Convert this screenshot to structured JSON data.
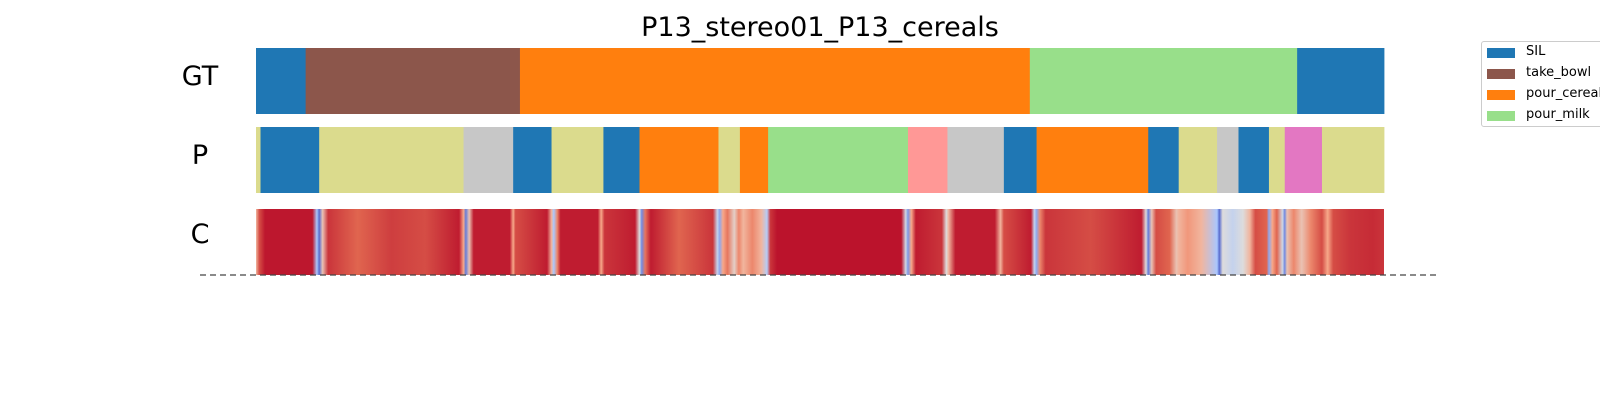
{
  "chart_data": {
    "type": "segmentation",
    "title": "P13_stereo01_P13_cereals",
    "x_range": [
      0,
      1
    ],
    "rows": [
      {
        "label": "GT",
        "kind": "segments",
        "segments": [
          {
            "end": 0.044,
            "class": "SIL"
          },
          {
            "end": 0.234,
            "class": "take_bowl"
          },
          {
            "end": 0.686,
            "class": "pour_cereals"
          },
          {
            "end": 0.923,
            "class": "pour_milk"
          },
          {
            "end": 1.0,
            "class": "SIL"
          }
        ]
      },
      {
        "label": "P",
        "kind": "segments",
        "segments": [
          {
            "end": 0.004,
            "class": "olive"
          },
          {
            "end": 0.056,
            "class": "SIL"
          },
          {
            "end": 0.184,
            "class": "olive"
          },
          {
            "end": 0.228,
            "class": "gray"
          },
          {
            "end": 0.262,
            "class": "SIL"
          },
          {
            "end": 0.308,
            "class": "olive"
          },
          {
            "end": 0.34,
            "class": "SIL"
          },
          {
            "end": 0.41,
            "class": "pour_cereals"
          },
          {
            "end": 0.429,
            "class": "olive"
          },
          {
            "end": 0.454,
            "class": "pour_cereals"
          },
          {
            "end": 0.578,
            "class": "pour_milk"
          },
          {
            "end": 0.613,
            "class": "pink"
          },
          {
            "end": 0.663,
            "class": "gray"
          },
          {
            "end": 0.692,
            "class": "SIL"
          },
          {
            "end": 0.791,
            "class": "pour_cereals"
          },
          {
            "end": 0.818,
            "class": "SIL"
          },
          {
            "end": 0.852,
            "class": "olive"
          },
          {
            "end": 0.871,
            "class": "gray"
          },
          {
            "end": 0.898,
            "class": "SIL"
          },
          {
            "end": 0.912,
            "class": "olive"
          },
          {
            "end": 0.945,
            "class": "magenta"
          },
          {
            "end": 1.0,
            "class": "olive"
          }
        ]
      },
      {
        "label": "C",
        "kind": "confidence",
        "value_range": [
          0,
          1
        ],
        "points": [
          [
            0.0,
            0.55
          ],
          [
            0.003,
            0.85
          ],
          [
            0.008,
            0.96
          ],
          [
            0.05,
            0.96
          ],
          [
            0.054,
            0.2
          ],
          [
            0.056,
            0.05
          ],
          [
            0.059,
            0.5
          ],
          [
            0.064,
            0.9
          ],
          [
            0.09,
            0.8
          ],
          [
            0.12,
            0.88
          ],
          [
            0.15,
            0.85
          ],
          [
            0.18,
            0.95
          ],
          [
            0.184,
            0.6
          ],
          [
            0.186,
            0.08
          ],
          [
            0.189,
            0.5
          ],
          [
            0.193,
            0.95
          ],
          [
            0.225,
            0.95
          ],
          [
            0.228,
            0.6
          ],
          [
            0.23,
            0.85
          ],
          [
            0.258,
            0.95
          ],
          [
            0.262,
            0.55
          ],
          [
            0.264,
            0.2
          ],
          [
            0.267,
            0.7
          ],
          [
            0.27,
            0.95
          ],
          [
            0.303,
            0.95
          ],
          [
            0.306,
            0.6
          ],
          [
            0.309,
            0.9
          ],
          [
            0.336,
            0.95
          ],
          [
            0.34,
            0.4
          ],
          [
            0.342,
            0.1
          ],
          [
            0.345,
            0.75
          ],
          [
            0.35,
            0.95
          ],
          [
            0.375,
            0.8
          ],
          [
            0.405,
            0.9
          ],
          [
            0.409,
            0.3
          ],
          [
            0.411,
            0.15
          ],
          [
            0.414,
            0.6
          ],
          [
            0.418,
            0.75
          ],
          [
            0.424,
            0.45
          ],
          [
            0.428,
            0.7
          ],
          [
            0.432,
            0.55
          ],
          [
            0.44,
            0.7
          ],
          [
            0.448,
            0.55
          ],
          [
            0.453,
            0.25
          ],
          [
            0.456,
            0.9
          ],
          [
            0.462,
            0.97
          ],
          [
            0.572,
            0.97
          ],
          [
            0.576,
            0.35
          ],
          [
            0.578,
            0.12
          ],
          [
            0.581,
            0.6
          ],
          [
            0.585,
            0.95
          ],
          [
            0.608,
            0.9
          ],
          [
            0.612,
            0.4
          ],
          [
            0.614,
            0.55
          ],
          [
            0.62,
            0.95
          ],
          [
            0.655,
            0.95
          ],
          [
            0.66,
            0.55
          ],
          [
            0.663,
            0.85
          ],
          [
            0.687,
            0.95
          ],
          [
            0.69,
            0.3
          ],
          [
            0.692,
            0.15
          ],
          [
            0.695,
            0.7
          ],
          [
            0.7,
            0.9
          ],
          [
            0.74,
            0.85
          ],
          [
            0.785,
            0.95
          ],
          [
            0.789,
            0.4
          ],
          [
            0.791,
            0.08
          ],
          [
            0.794,
            0.5
          ],
          [
            0.798,
            0.85
          ],
          [
            0.81,
            0.8
          ],
          [
            0.816,
            0.5
          ],
          [
            0.818,
            0.55
          ],
          [
            0.826,
            0.65
          ],
          [
            0.838,
            0.55
          ],
          [
            0.852,
            0.2
          ],
          [
            0.854,
            0.05
          ],
          [
            0.857,
            0.4
          ],
          [
            0.866,
            0.3
          ],
          [
            0.875,
            0.4
          ],
          [
            0.881,
            0.55
          ],
          [
            0.886,
            0.85
          ],
          [
            0.896,
            0.8
          ],
          [
            0.898,
            0.15
          ],
          [
            0.901,
            0.6
          ],
          [
            0.905,
            0.8
          ],
          [
            0.91,
            0.35
          ],
          [
            0.912,
            0.1
          ],
          [
            0.914,
            0.5
          ],
          [
            0.92,
            0.7
          ],
          [
            0.927,
            0.5
          ],
          [
            0.935,
            0.7
          ],
          [
            0.945,
            0.85
          ],
          [
            0.95,
            0.6
          ],
          [
            0.955,
            0.85
          ],
          [
            0.97,
            0.9
          ],
          [
            0.99,
            0.92
          ],
          [
            1.0,
            0.9
          ]
        ]
      }
    ],
    "legend": {
      "placement": "top-right",
      "entries": [
        {
          "label": "SIL",
          "class": "SIL"
        },
        {
          "label": "take_bowl",
          "class": "take_bowl"
        },
        {
          "label": "pour_cereals",
          "class": "pour_cereals"
        },
        {
          "label": "pour_milk",
          "class": "pour_milk"
        }
      ]
    },
    "class_colors": {
      "SIL": "#1f77b4",
      "take_bowl": "#8c564b",
      "pour_cereals": "#ff7f0e",
      "pour_milk": "#98df8a",
      "olive": "#dbdb8d",
      "gray": "#c7c7c7",
      "pink": "#ff9896",
      "magenta": "#e377c2"
    },
    "confidence_colormap": [
      "#3b4cc0",
      "#aac7fd",
      "#dddcdc",
      "#f7a889",
      "#e0654f",
      "#b40426"
    ]
  }
}
